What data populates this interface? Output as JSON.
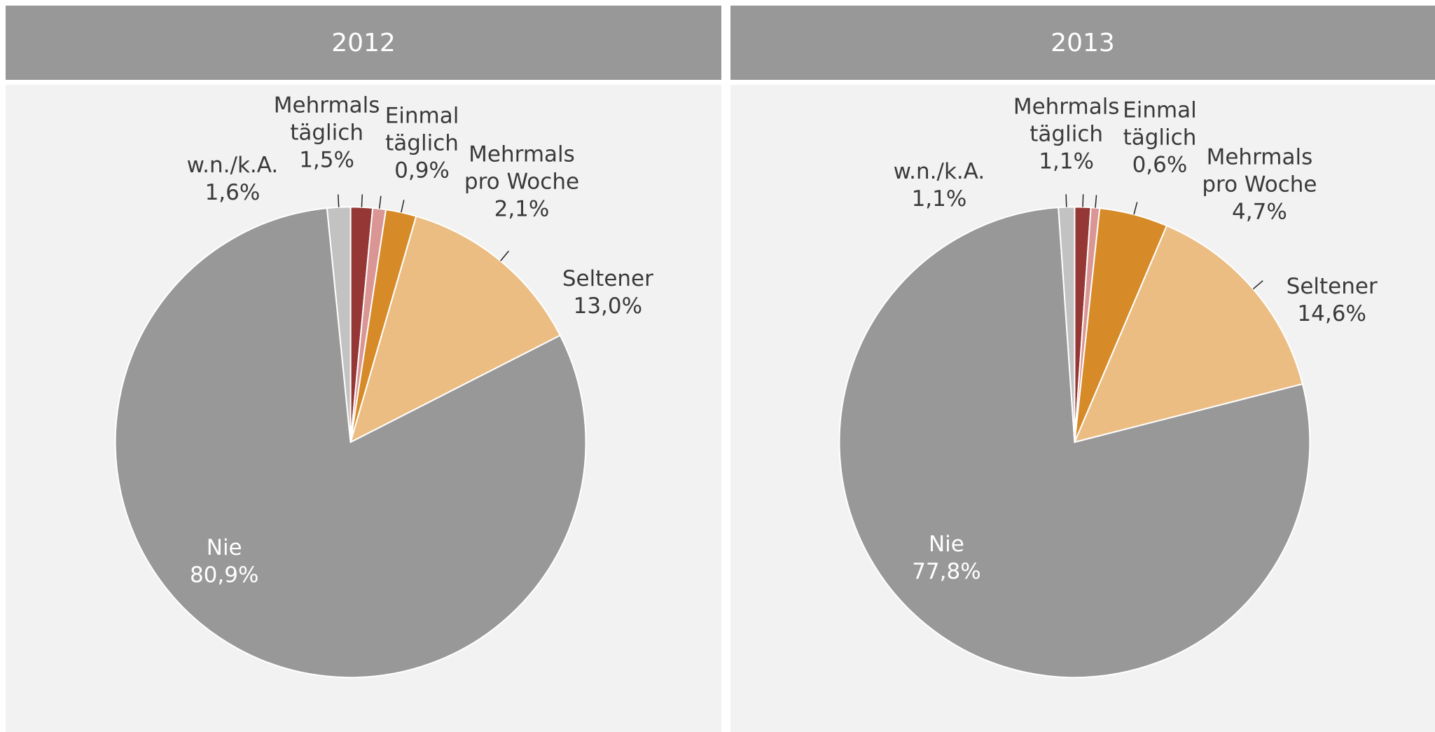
{
  "chart_data": [
    {
      "type": "pie",
      "title": "2012",
      "categories": [
        "Mehrmals\ntäglich",
        "Einmal\ntäglich",
        "Mehrmals\npro Woche",
        "Seltener",
        "Nie",
        "w.n./k.A."
      ],
      "values": [
        1.5,
        0.9,
        2.1,
        13.0,
        80.9,
        1.6
      ],
      "value_labels": [
        "1,5%",
        "0,9%",
        "2,1%",
        "13,0%",
        "80,9%",
        "1,6%"
      ],
      "colors": [
        "#953735",
        "#d99694",
        "#d68b28",
        "#ebbd83",
        "#979897",
        "#c1c2c1"
      ]
    },
    {
      "type": "pie",
      "title": "2013",
      "categories": [
        "Mehrmals\ntäglich",
        "Einmal\ntäglich",
        "Mehrmals\npro Woche",
        "Seltener",
        "Nie",
        "w.n./k.A."
      ],
      "values": [
        1.1,
        0.6,
        4.7,
        14.6,
        77.8,
        1.1
      ],
      "value_labels": [
        "1,1%",
        "0,6%",
        "4,7%",
        "14,6%",
        "77,8%",
        "1,1%"
      ],
      "colors": [
        "#953735",
        "#d99694",
        "#d68b28",
        "#ebbd83",
        "#979897",
        "#c1c2c1"
      ]
    }
  ]
}
